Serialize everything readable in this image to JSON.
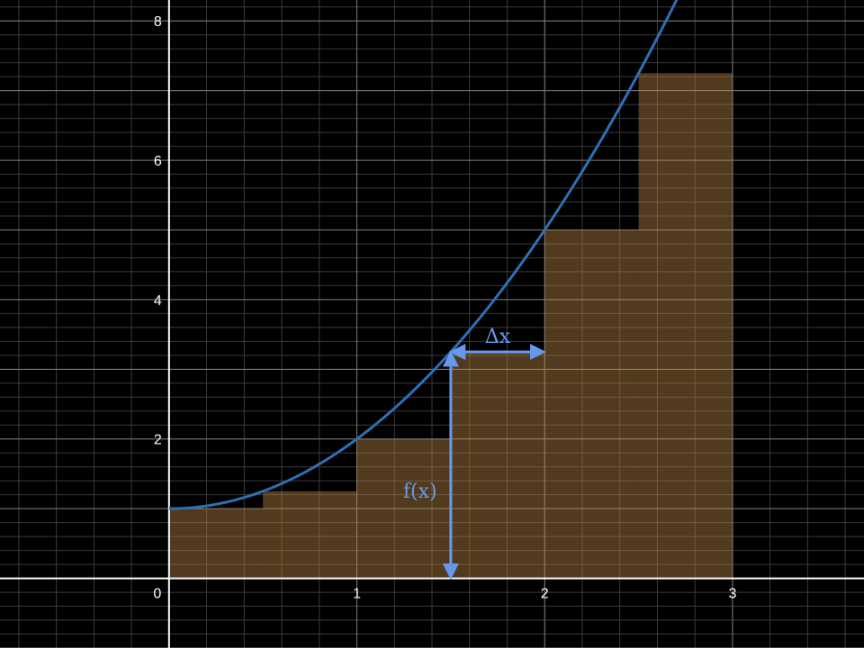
{
  "chart_data": {
    "type": "area",
    "function": "x^2 + 1",
    "xlim": [
      -0.9,
      3.7
    ],
    "ylim": [
      -1,
      8.3
    ],
    "x_ticks": [
      0,
      1,
      2,
      3
    ],
    "y_ticks": [
      2,
      4,
      6,
      8
    ],
    "x_tick_labels": [
      "0",
      "1",
      "2",
      "3"
    ],
    "y_tick_labels": [
      "2",
      "4",
      "6",
      "8"
    ],
    "grid": true,
    "minor_grid_step": 0.2,
    "curve": {
      "name": "",
      "color": "#2d70b3",
      "x_range": [
        0,
        3.7
      ]
    },
    "rectangles": {
      "color": "#c28a45",
      "dx": 0.5,
      "x": [
        0,
        0.5,
        1,
        1.5,
        2,
        2.5
      ],
      "heights": [
        1,
        1.25,
        2,
        3.25,
        5,
        7.25
      ]
    },
    "annotations": [
      {
        "text": "f(x)",
        "kind": "vertical-arrow",
        "x": 1.5,
        "y_from": 0,
        "y_to": 3.25
      },
      {
        "text": "Δx",
        "kind": "horizontal-arrow",
        "y": 3.25,
        "x_from": 1.5,
        "x_to": 2
      }
    ],
    "colors": {
      "background": "#000000",
      "axis": "#ffffff",
      "annotation": "#6699ee"
    }
  }
}
